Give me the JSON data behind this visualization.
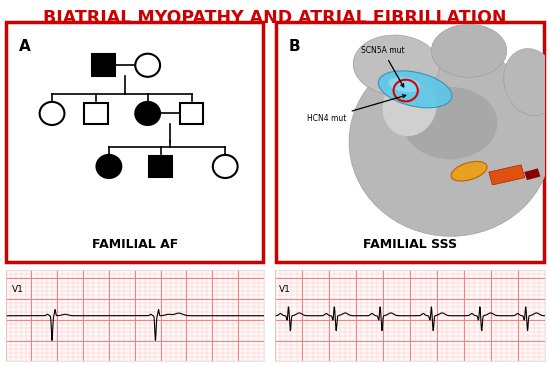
{
  "title": "BIATRIAL MYOPATHY AND ATRIAL FIBRILLATION",
  "title_color": "#cc0000",
  "title_fontsize": 12.5,
  "panel_A_label": "A",
  "panel_B_label": "B",
  "panel_A_caption": "FAMILIAL AF",
  "panel_B_caption": "FAMILIAL SSS",
  "caption_fontsize": 9,
  "border_color": "#cc0000",
  "background_color": "#ffffff",
  "ecg_grid_major_color": "#f08080",
  "ecg_grid_minor_color": "#fcc0c0",
  "ecg_bg_color": "#fff8f8",
  "ecg_line_color": "#000000",
  "scn5a_label": "SCN5A mut",
  "hcn4_label": "HCN4 mut",
  "heart_base_color": "#b8b8b8",
  "heart_shadow_color": "#a0a0a0",
  "blue_color": "#5bc8e8",
  "gold_color": "#e8a020",
  "orange_color": "#e05010",
  "red_circle_color": "#dd0000"
}
